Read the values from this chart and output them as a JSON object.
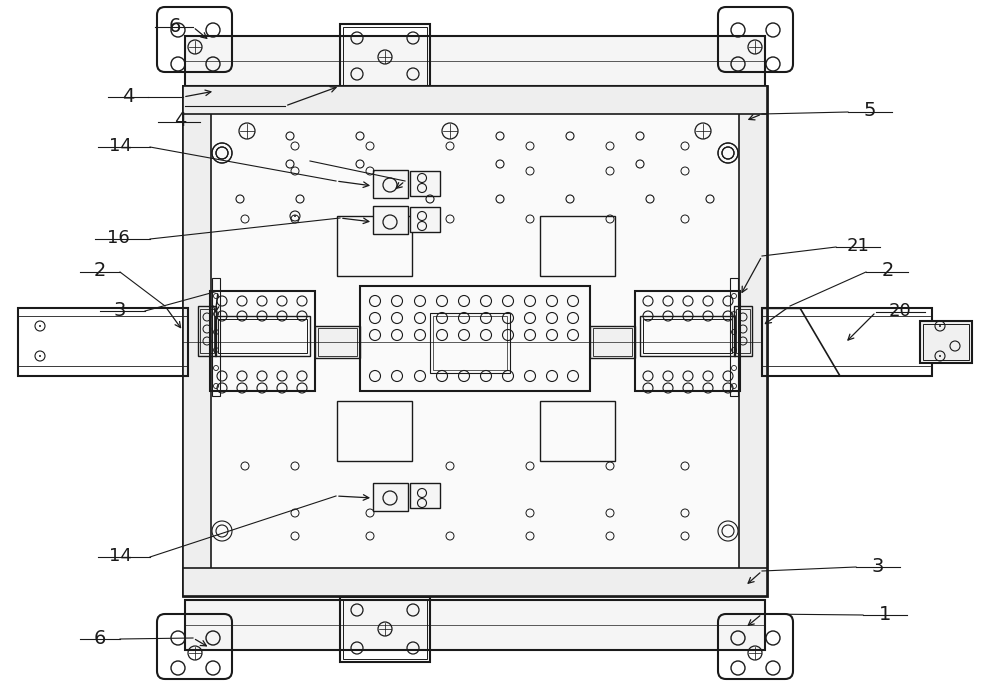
{
  "bg_color": "#ffffff",
  "lc": "#1a1a1a",
  "fig_width": 10.0,
  "fig_height": 6.86
}
